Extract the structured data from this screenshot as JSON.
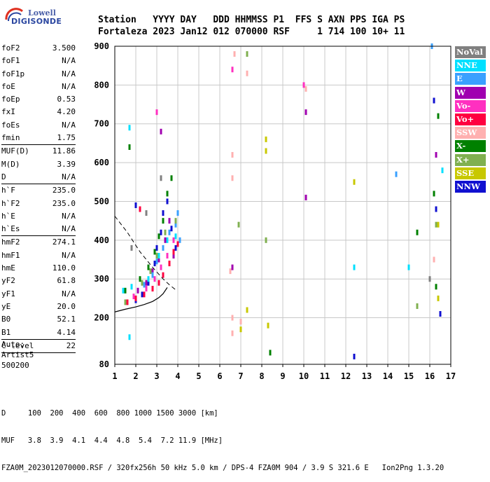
{
  "logo": {
    "brand": "Lowell",
    "product": "DIGISONDE"
  },
  "header": {
    "line1": "Station   YYYY DAY   DDD HHMMSS P1  FFS S AXN PPS IGA PS",
    "line2": "Fortaleza 2023 Jan12 012 070000 RSF     1 714 100 10+ 11"
  },
  "params": [
    {
      "name": "foF2",
      "value": "3.500"
    },
    {
      "name": "foF1",
      "value": "N/A"
    },
    {
      "name": "foF1p",
      "value": "N/A"
    },
    {
      "name": "foE",
      "value": "N/A"
    },
    {
      "name": "foEp",
      "value": "0.53"
    },
    {
      "name": "fxI",
      "value": "4.20"
    },
    {
      "name": "foEs",
      "value": "N/A"
    },
    {
      "name": "fmin",
      "value": "1.75",
      "sep": true
    },
    {
      "name": "MUF(D)",
      "value": "11.86"
    },
    {
      "name": "M(D)",
      "value": "3.39"
    },
    {
      "name": "D",
      "value": "N/A",
      "sep": true
    },
    {
      "name": "h`F",
      "value": "235.0"
    },
    {
      "name": "h`F2",
      "value": "235.0"
    },
    {
      "name": "h`E",
      "value": "N/A"
    },
    {
      "name": "h`Es",
      "value": "N/A",
      "sep": true
    },
    {
      "name": "hmF2",
      "value": "274.1"
    },
    {
      "name": "hmF1",
      "value": "N/A"
    },
    {
      "name": "hmE",
      "value": "110.0"
    },
    {
      "name": "yF2",
      "value": "61.8"
    },
    {
      "name": "yF1",
      "value": "N/A"
    },
    {
      "name": "yE",
      "value": "20.0"
    },
    {
      "name": "B0",
      "value": "52.1"
    },
    {
      "name": "B1",
      "value": "4.14",
      "sep": true
    },
    {
      "name": "C-level",
      "value": "22",
      "sep": true
    }
  ],
  "auto": {
    "line1": "Auto:",
    "line2": "Artist5",
    "line3": "500200"
  },
  "legend": [
    {
      "label": "NoVal",
      "color": "#808080"
    },
    {
      "label": "NNE",
      "color": "#00e0ff"
    },
    {
      "label": "E",
      "color": "#3aa0ff"
    },
    {
      "label": "W",
      "color": "#a000b0"
    },
    {
      "label": "Vo-",
      "color": "#ff30c0"
    },
    {
      "label": "Vo+",
      "color": "#ff0040"
    },
    {
      "label": "SSW",
      "color": "#ffb0b0"
    },
    {
      "label": "X-",
      "color": "#008000"
    },
    {
      "label": "X+",
      "color": "#80b050"
    },
    {
      "label": "SSE",
      "color": "#c8c800"
    },
    {
      "label": "NNW",
      "color": "#1010d0"
    }
  ],
  "footer": {
    "line1": "D     100  200  400  600  800 1000 1500 3000 [km]",
    "line2": "MUF   3.8  3.9  4.1  4.4  4.8  5.4  7.2 11.9 [MHz]",
    "line3": "FZA0M_2023012070000.RSF / 320fx256h 50 kHz 5.0 km / DPS-4 FZA0M 904 / 3.9 S 321.6 E   Ion2Png 1.3.20"
  },
  "chart_data": {
    "type": "scatter",
    "xlim": [
      1,
      17
    ],
    "ylim": [
      80,
      900
    ],
    "x_ticks": [
      1,
      2,
      3,
      4,
      5,
      6,
      7,
      8,
      9,
      10,
      11,
      12,
      13,
      14,
      15,
      16,
      17
    ],
    "y_ticks": [
      80,
      200,
      300,
      400,
      500,
      600,
      700,
      800,
      900
    ],
    "grid": true,
    "legend_placement": "right",
    "profile_curve": {
      "x": [
        1.0,
        1.5,
        2.0,
        2.4,
        2.8,
        3.1,
        3.3,
        3.5
      ],
      "y": [
        215,
        222,
        228,
        234,
        242,
        252,
        262,
        278
      ]
    },
    "model_trace": {
      "x": [
        1.0,
        1.6,
        2.2,
        2.8,
        3.3,
        3.6,
        3.9
      ],
      "y": [
        462,
        420,
        370,
        330,
        300,
        285,
        272
      ]
    },
    "series": [
      {
        "color_key": "NNW",
        "points": [
          [
            2.0,
            245
          ],
          [
            2.3,
            260
          ],
          [
            2.6,
            290
          ],
          [
            2.9,
            340
          ],
          [
            3.0,
            380
          ],
          [
            3.2,
            420
          ],
          [
            3.3,
            470
          ],
          [
            3.5,
            500
          ],
          [
            3.7,
            430
          ],
          [
            3.9,
            380
          ],
          [
            2.0,
            490
          ],
          [
            16.5,
            210
          ],
          [
            16.3,
            480
          ],
          [
            12.4,
            100
          ],
          [
            16.2,
            760
          ]
        ]
      },
      {
        "color_key": "X-",
        "points": [
          [
            1.5,
            270
          ],
          [
            2.2,
            300
          ],
          [
            2.6,
            330
          ],
          [
            2.9,
            370
          ],
          [
            3.1,
            410
          ],
          [
            3.3,
            450
          ],
          [
            3.5,
            520
          ],
          [
            3.7,
            560
          ],
          [
            1.7,
            640
          ],
          [
            16.4,
            720
          ],
          [
            16.2,
            520
          ],
          [
            8.4,
            110
          ],
          [
            16.3,
            280
          ],
          [
            15.4,
            420
          ]
        ]
      },
      {
        "color_key": "W",
        "points": [
          [
            2.1,
            270
          ],
          [
            2.5,
            290
          ],
          [
            2.8,
            320
          ],
          [
            3.1,
            350
          ],
          [
            3.4,
            400
          ],
          [
            3.6,
            450
          ],
          [
            3.8,
            360
          ],
          [
            10.1,
            730
          ],
          [
            10.1,
            510
          ],
          [
            6.6,
            330
          ],
          [
            16.3,
            620
          ],
          [
            3.2,
            680
          ]
        ]
      },
      {
        "color_key": "Vo+",
        "points": [
          [
            1.6,
            240
          ],
          [
            2.0,
            250
          ],
          [
            2.4,
            260
          ],
          [
            2.8,
            275
          ],
          [
            3.1,
            290
          ],
          [
            3.3,
            310
          ],
          [
            3.6,
            340
          ],
          [
            3.8,
            370
          ],
          [
            4.0,
            390
          ],
          [
            2.2,
            480
          ]
        ]
      },
      {
        "color_key": "Vo-",
        "points": [
          [
            1.9,
            255
          ],
          [
            2.5,
            275
          ],
          [
            2.9,
            300
          ],
          [
            3.2,
            330
          ],
          [
            3.5,
            360
          ],
          [
            3.8,
            400
          ],
          [
            6.6,
            840
          ],
          [
            3.0,
            730
          ],
          [
            10.0,
            800
          ]
        ]
      },
      {
        "color_key": "E",
        "points": [
          [
            2.4,
            285
          ],
          [
            2.8,
            310
          ],
          [
            3.0,
            345
          ],
          [
            3.3,
            380
          ],
          [
            3.6,
            420
          ],
          [
            3.9,
            440
          ],
          [
            4.1,
            400
          ],
          [
            4.0,
            470
          ],
          [
            16.1,
            900
          ],
          [
            14.4,
            570
          ]
        ]
      },
      {
        "color_key": "NNE",
        "points": [
          [
            1.4,
            270
          ],
          [
            1.8,
            280
          ],
          [
            2.6,
            300
          ],
          [
            3.1,
            360
          ],
          [
            3.5,
            400
          ],
          [
            3.9,
            410
          ],
          [
            1.7,
            690
          ],
          [
            1.7,
            150
          ],
          [
            15.0,
            330
          ],
          [
            12.4,
            330
          ],
          [
            16.6,
            580
          ]
        ]
      },
      {
        "color_key": "SSW",
        "points": [
          [
            6.6,
            200
          ],
          [
            6.6,
            160
          ],
          [
            6.6,
            560
          ],
          [
            6.6,
            620
          ],
          [
            6.7,
            880
          ],
          [
            7.0,
            190
          ],
          [
            7.3,
            830
          ],
          [
            6.5,
            320
          ],
          [
            10.1,
            790
          ],
          [
            16.2,
            350
          ]
        ]
      },
      {
        "color_key": "X+",
        "points": [
          [
            1.5,
            240
          ],
          [
            2.3,
            290
          ],
          [
            2.7,
            320
          ],
          [
            3.0,
            360
          ],
          [
            3.4,
            420
          ],
          [
            3.9,
            450
          ],
          [
            6.9,
            440
          ],
          [
            15.4,
            230
          ],
          [
            16.3,
            440
          ],
          [
            8.2,
            400
          ],
          [
            7.3,
            880
          ]
        ]
      },
      {
        "color_key": "SSE",
        "points": [
          [
            8.2,
            660
          ],
          [
            8.2,
            630
          ],
          [
            7.3,
            220
          ],
          [
            7.0,
            170
          ],
          [
            8.3,
            180
          ],
          [
            16.4,
            440
          ],
          [
            16.4,
            250
          ],
          [
            12.4,
            550
          ]
        ]
      },
      {
        "color_key": "NoVal",
        "points": [
          [
            1.8,
            380
          ],
          [
            2.5,
            470
          ],
          [
            3.2,
            560
          ],
          [
            16.0,
            300
          ]
        ]
      }
    ]
  }
}
